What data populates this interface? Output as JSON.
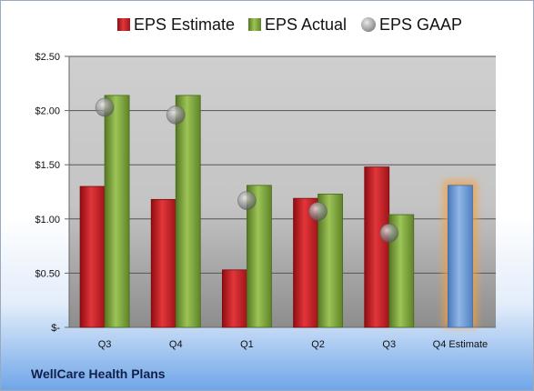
{
  "company": "WellCare Health Plans",
  "colors": {
    "estimate": "#c81c22",
    "actual": "#7ea43a",
    "gaap": "#9a9a9a",
    "future_estimate": "#6f9ad3",
    "future_glow": "#f5a040"
  },
  "chart_data": {
    "type": "bar",
    "categories": [
      "Q3",
      "Q4",
      "Q1",
      "Q2",
      "Q3",
      "Q4 Estimate"
    ],
    "series": [
      {
        "name": "EPS Estimate",
        "values": [
          1.3,
          1.18,
          0.53,
          1.19,
          1.48,
          null
        ]
      },
      {
        "name": "EPS Actual",
        "values": [
          2.14,
          2.14,
          1.31,
          1.23,
          1.04,
          null
        ]
      },
      {
        "name": "EPS GAAP",
        "values": [
          2.03,
          1.96,
          1.17,
          1.07,
          0.87,
          null
        ]
      }
    ],
    "future_estimate": {
      "category": "Q4 Estimate",
      "value": 1.31
    },
    "y_ticks": [
      "$-",
      "$0.50",
      "$1.00",
      "$1.50",
      "$2.00",
      "$2.50"
    ],
    "y_tick_values": [
      0,
      0.5,
      1.0,
      1.5,
      2.0,
      2.5
    ],
    "ylim": [
      0,
      2.5
    ],
    "grid": true,
    "legend_position": "top"
  }
}
